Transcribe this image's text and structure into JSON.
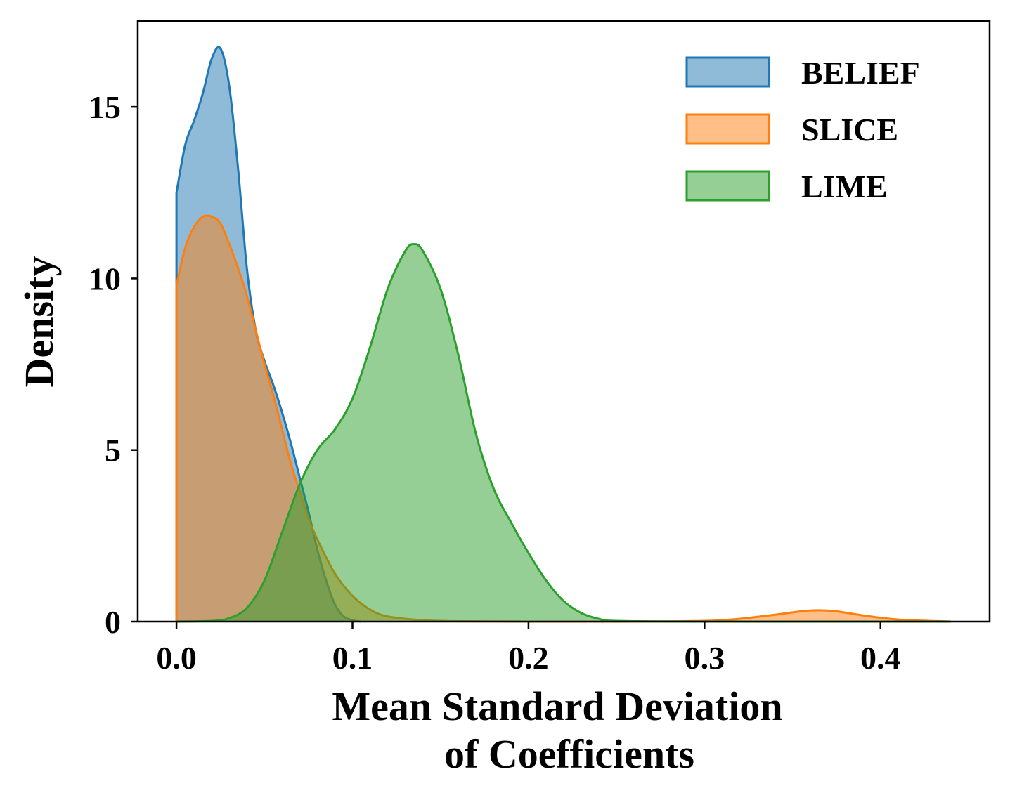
{
  "chart_data": {
    "type": "area",
    "title": "",
    "xlabel_lines": [
      "Mean Standard Deviation",
      "of Coefficients"
    ],
    "ylabel": "Density",
    "xlim": [
      -0.022,
      0.462
    ],
    "ylim": [
      0,
      17.5
    ],
    "xticks": [
      0.0,
      0.1,
      0.2,
      0.3,
      0.4
    ],
    "xtick_labels": [
      "0.0",
      "0.1",
      "0.2",
      "0.3",
      "0.4"
    ],
    "yticks": [
      0,
      5,
      10,
      15
    ],
    "ytick_labels": [
      "0",
      "5",
      "10",
      "15"
    ],
    "grid": false,
    "legend_position": "top-right",
    "series": [
      {
        "name": "BELIEF",
        "color": "#1f77b4",
        "fill_opacity": 0.5,
        "x": [
          0.0,
          0.005,
          0.01,
          0.015,
          0.02,
          0.025,
          0.03,
          0.035,
          0.04,
          0.045,
          0.05,
          0.055,
          0.06,
          0.065,
          0.07,
          0.075,
          0.08,
          0.085,
          0.09,
          0.095,
          0.1,
          0.105
        ],
        "y": [
          12.5,
          13.9,
          14.6,
          15.4,
          16.4,
          16.7,
          15.6,
          13.2,
          10.3,
          8.5,
          7.6,
          6.9,
          6.1,
          5.2,
          4.2,
          3.2,
          2.1,
          1.2,
          0.5,
          0.15,
          0.04,
          0.0
        ]
      },
      {
        "name": "SLICE",
        "color": "#ff7f0e",
        "fill_opacity": 0.5,
        "x": [
          0.0,
          0.005,
          0.01,
          0.015,
          0.02,
          0.025,
          0.03,
          0.035,
          0.04,
          0.045,
          0.05,
          0.055,
          0.06,
          0.065,
          0.07,
          0.075,
          0.08,
          0.09,
          0.1,
          0.11,
          0.12,
          0.14,
          0.16,
          0.2,
          0.25,
          0.3,
          0.32,
          0.34,
          0.355,
          0.365,
          0.375,
          0.39,
          0.41,
          0.44
        ],
        "y": [
          9.8,
          10.9,
          11.5,
          11.8,
          11.8,
          11.6,
          11.0,
          10.3,
          9.5,
          8.5,
          7.5,
          6.6,
          5.6,
          4.6,
          3.8,
          3.0,
          2.4,
          1.4,
          0.75,
          0.35,
          0.15,
          0.04,
          0.01,
          0.0,
          0.0,
          0.02,
          0.08,
          0.2,
          0.3,
          0.33,
          0.3,
          0.18,
          0.06,
          0.0
        ]
      },
      {
        "name": "LIME",
        "color": "#2ca02c",
        "fill_opacity": 0.5,
        "x": [
          0.0,
          0.02,
          0.03,
          0.04,
          0.05,
          0.06,
          0.07,
          0.08,
          0.09,
          0.1,
          0.11,
          0.12,
          0.13,
          0.135,
          0.14,
          0.15,
          0.16,
          0.17,
          0.18,
          0.19,
          0.2,
          0.21,
          0.22,
          0.23,
          0.24,
          0.25,
          0.3,
          0.4,
          0.44
        ],
        "y": [
          0.0,
          0.02,
          0.1,
          0.4,
          1.2,
          2.6,
          4.0,
          5.0,
          5.6,
          6.5,
          8.0,
          9.7,
          10.8,
          11.0,
          10.8,
          9.7,
          7.8,
          5.5,
          3.9,
          2.9,
          2.0,
          1.2,
          0.6,
          0.25,
          0.08,
          0.02,
          0.0,
          0.0,
          0.0
        ]
      }
    ]
  }
}
